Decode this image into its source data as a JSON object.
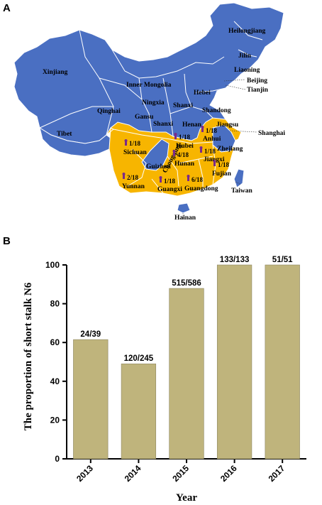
{
  "panels": {
    "a_label": "A",
    "b_label": "B"
  },
  "colors": {
    "ocean": "#ffffff",
    "province_blue": "#4a6fc2",
    "province_orange": "#f7b500",
    "border": "#ffffff",
    "pin": "#7b2a8a",
    "bar_fill": "#bfb47c",
    "bar_stroke": "#8c8560"
  },
  "map": {
    "provinces": {
      "heilongjiang": "Heilongjiang",
      "jilin": "Jilin",
      "liaoning": "Liaoning",
      "beijing": "Beijing",
      "tianjin": "Tianjin",
      "inner_mongolia": "Inner Mongolia",
      "hebei": "Hebei",
      "xinjiang": "Xinjiang",
      "ningxia": "Ningxia",
      "shanxi": "Shanxi",
      "shandong": "Shandong",
      "qinghai": "Qinghai",
      "gansu": "Gansu",
      "shaanxi": "Shanxi",
      "henan": "Henan",
      "jiangsu": "Jiangsu",
      "shanghai": "Shanghai",
      "tibet": "Tibet",
      "sichuan": "Sichuan",
      "hubei": "Hubei",
      "anhui": "Anhui",
      "chongqing": "Chongqing",
      "zhejiang": "Zhejiang",
      "guizhou": "Guizhou",
      "hunan": "Hunan",
      "jiangxi": "Jiangxi",
      "fujian": "Fujian",
      "yunnan": "Yunnan",
      "guangxi": "Guangxi",
      "guangdong": "Guangdong",
      "taiwan": "Taiwan",
      "hainan": "Hainan"
    },
    "counts": {
      "sichuan": "1/18",
      "hubei": "1/18",
      "anhui": "1/18",
      "hunan": "4/18",
      "jiangxi": "1/18",
      "fujian": "1/18",
      "yunnan": "2/18",
      "guangxi": "1/18",
      "guangdong": "6/18"
    }
  },
  "chart_data": {
    "type": "bar",
    "categories": [
      "2013",
      "2014",
      "2015",
      "2016",
      "2017"
    ],
    "values": [
      61.5,
      49.0,
      87.9,
      100,
      100
    ],
    "data_labels": [
      "24/39",
      "120/245",
      "515/586",
      "133/133",
      "51/51"
    ],
    "xlabel": "Year",
    "ylabel": "The proportion of short stalk N6",
    "ylim": [
      0,
      100
    ],
    "yticks": [
      "0",
      "20",
      "40",
      "60",
      "80",
      "100"
    ],
    "grid": false,
    "legend": "none"
  }
}
